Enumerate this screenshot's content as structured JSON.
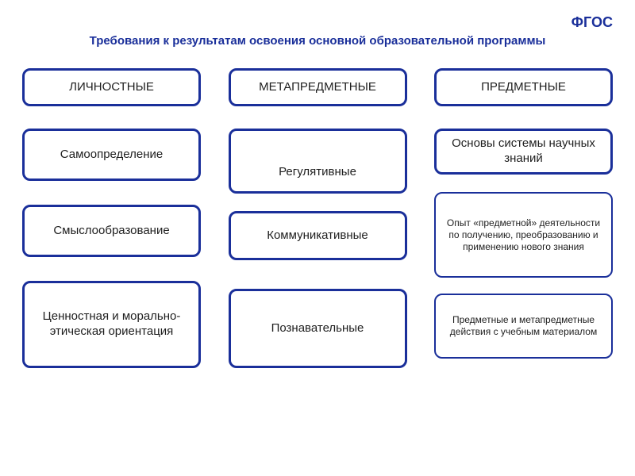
{
  "colors": {
    "border": "#1a2f9a",
    "headerText": "#1a2f9a",
    "bodyText": "#1e1e1e",
    "background": "#ffffff"
  },
  "header": {
    "top": "ФГОС",
    "sub": "Требования к результатам освоения  основной образовательной  программы"
  },
  "style": {
    "headerBox": {
      "borderWidth": 3,
      "height": 48,
      "fontSize": 15,
      "fontWeight": "normal",
      "radius": 10,
      "marginBottom": 28
    },
    "thickBox": {
      "borderWidth": 3,
      "fontSize": 15,
      "radius": 10
    },
    "thinBox": {
      "borderWidth": 2,
      "fontSize": 12,
      "radius": 10
    }
  },
  "columns": [
    {
      "header": "ЛИЧНОСТНЫЕ",
      "items": [
        {
          "text": "Самоопределение",
          "style": "thickBox",
          "height": 66,
          "marginBottom": 30
        },
        {
          "text": "Смыслообразование",
          "style": "thickBox",
          "height": 66,
          "marginBottom": 30
        },
        {
          "text": "Ценностная и морально-этическая ориентация",
          "style": "thickBox",
          "height": 110,
          "marginBottom": 0
        }
      ]
    },
    {
      "header": "МЕТАПРЕДМЕТНЫЕ",
      "items": [
        {
          "text": "Регулятивные",
          "style": "thickBox",
          "height": 82,
          "marginBottom": 22,
          "valign": "flex-end"
        },
        {
          "text": "Коммуникативные",
          "style": "thickBox",
          "height": 62,
          "marginBottom": 36
        },
        {
          "text": "Познавательные",
          "style": "thickBox",
          "height": 100,
          "marginBottom": 0
        }
      ]
    },
    {
      "header": "ПРЕДМЕТНЫЕ",
      "items": [
        {
          "text": "Основы системы научных знаний",
          "style": "thickBox",
          "height": 58,
          "marginBottom": 22
        },
        {
          "text": "Опыт «предметной» деятельности по получению, преобразованию и применению нового знания",
          "style": "thinBox",
          "height": 108,
          "marginBottom": 20
        },
        {
          "text": "Предметные и метапредметные действия с учебным материалом",
          "style": "thinBox",
          "height": 82,
          "marginBottom": 0
        }
      ]
    }
  ]
}
